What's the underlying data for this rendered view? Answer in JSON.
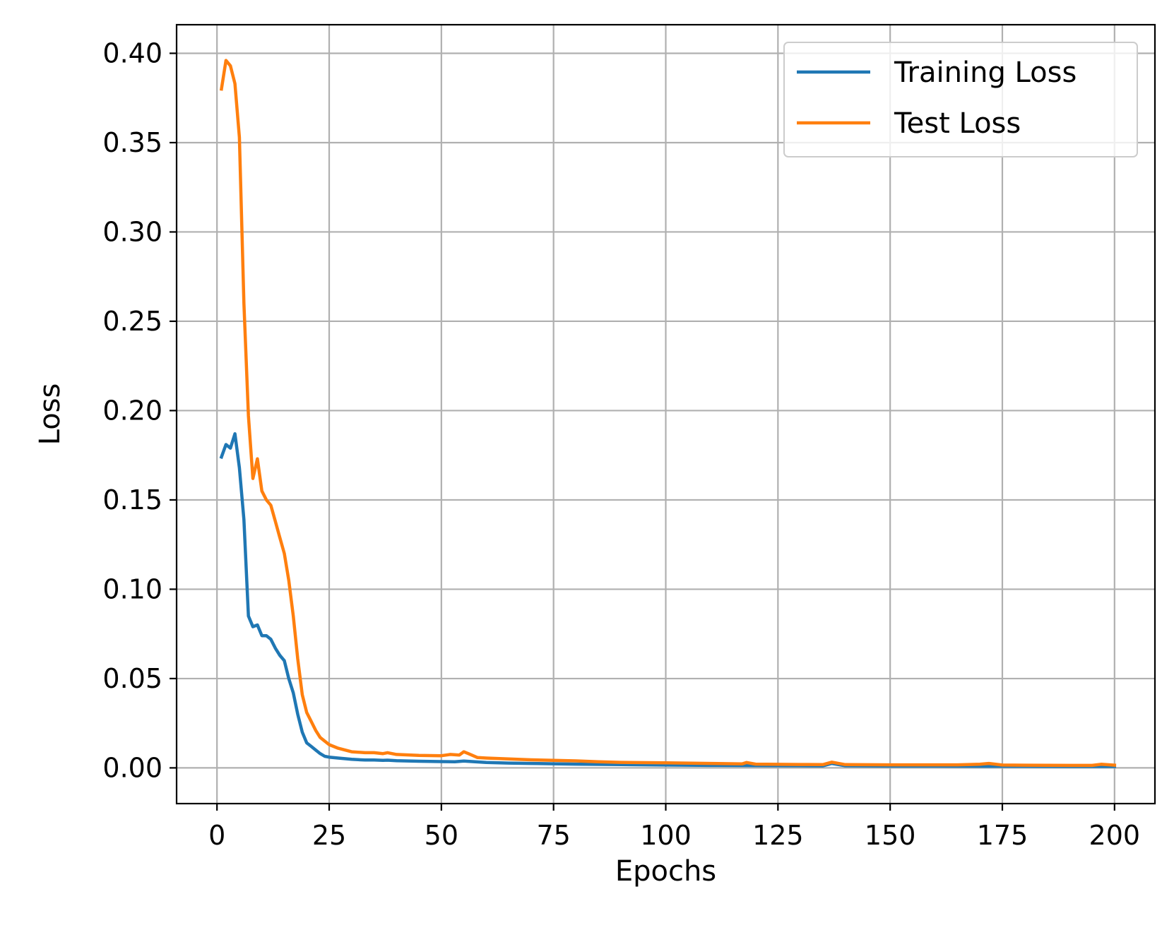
{
  "chart_data": {
    "type": "line",
    "title": "",
    "xlabel": "Epochs",
    "ylabel": "Loss",
    "xlim": [
      -9,
      209
    ],
    "ylim": [
      -0.02,
      0.416
    ],
    "xticks": [
      0,
      25,
      50,
      75,
      100,
      125,
      150,
      175,
      200
    ],
    "xtick_labels": [
      "0",
      "25",
      "50",
      "75",
      "100",
      "125",
      "150",
      "175",
      "200"
    ],
    "yticks": [
      0.0,
      0.05,
      0.1,
      0.15,
      0.2,
      0.25,
      0.3,
      0.35,
      0.4
    ],
    "ytick_labels": [
      "0.00",
      "0.05",
      "0.10",
      "0.15",
      "0.20",
      "0.25",
      "0.30",
      "0.35",
      "0.40"
    ],
    "grid": true,
    "legend_position": "top-right",
    "series": [
      {
        "name": "Training Loss",
        "color": "#1f77b4",
        "x": [
          1,
          2,
          3,
          4,
          5,
          6,
          7,
          8,
          9,
          10,
          11,
          12,
          13,
          14,
          15,
          16,
          17,
          18,
          19,
          20,
          21,
          22,
          23,
          24,
          25,
          27,
          30,
          33,
          35,
          37,
          38,
          40,
          45,
          50,
          53,
          55,
          60,
          65,
          70,
          75,
          80,
          90,
          100,
          110,
          120,
          130,
          135,
          137,
          140,
          150,
          160,
          170,
          180,
          190,
          195,
          200
        ],
        "y": [
          0.174,
          0.181,
          0.179,
          0.187,
          0.168,
          0.139,
          0.085,
          0.079,
          0.08,
          0.074,
          0.074,
          0.072,
          0.067,
          0.063,
          0.06,
          0.05,
          0.042,
          0.03,
          0.02,
          0.014,
          0.012,
          0.01,
          0.008,
          0.0065,
          0.006,
          0.0055,
          0.0048,
          0.0044,
          0.0044,
          0.0042,
          0.0043,
          0.004,
          0.0037,
          0.0035,
          0.0034,
          0.0038,
          0.003,
          0.0027,
          0.0025,
          0.0023,
          0.0021,
          0.0018,
          0.0016,
          0.0014,
          0.0013,
          0.0012,
          0.0011,
          0.0025,
          0.0012,
          0.001,
          0.001,
          0.0009,
          0.0009,
          0.0008,
          0.0008,
          0.0008
        ]
      },
      {
        "name": "Test Loss",
        "color": "#ff7f0e",
        "x": [
          1,
          2,
          3,
          4,
          5,
          6,
          7,
          8,
          9,
          10,
          11,
          12,
          13,
          14,
          15,
          16,
          17,
          18,
          19,
          20,
          21,
          22,
          23,
          24,
          25,
          27,
          30,
          33,
          35,
          37,
          38,
          40,
          45,
          50,
          52,
          54,
          55,
          56,
          58,
          60,
          65,
          70,
          75,
          80,
          85,
          90,
          100,
          110,
          117,
          118,
          120,
          130,
          135,
          137,
          140,
          150,
          165,
          170,
          172,
          175,
          180,
          190,
          195,
          197,
          200
        ],
        "y": [
          0.38,
          0.396,
          0.393,
          0.383,
          0.353,
          0.26,
          0.197,
          0.162,
          0.173,
          0.155,
          0.15,
          0.147,
          0.138,
          0.129,
          0.12,
          0.105,
          0.085,
          0.061,
          0.041,
          0.031,
          0.026,
          0.021,
          0.017,
          0.015,
          0.013,
          0.011,
          0.009,
          0.0085,
          0.0085,
          0.008,
          0.0085,
          0.0075,
          0.007,
          0.0068,
          0.0075,
          0.0072,
          0.009,
          0.008,
          0.0058,
          0.0055,
          0.005,
          0.0045,
          0.0042,
          0.0039,
          0.0034,
          0.0031,
          0.0028,
          0.0025,
          0.0022,
          0.003,
          0.0021,
          0.0019,
          0.0018,
          0.0032,
          0.0018,
          0.0017,
          0.0017,
          0.002,
          0.0025,
          0.0016,
          0.0015,
          0.0014,
          0.0014,
          0.002,
          0.0015
        ]
      }
    ]
  }
}
